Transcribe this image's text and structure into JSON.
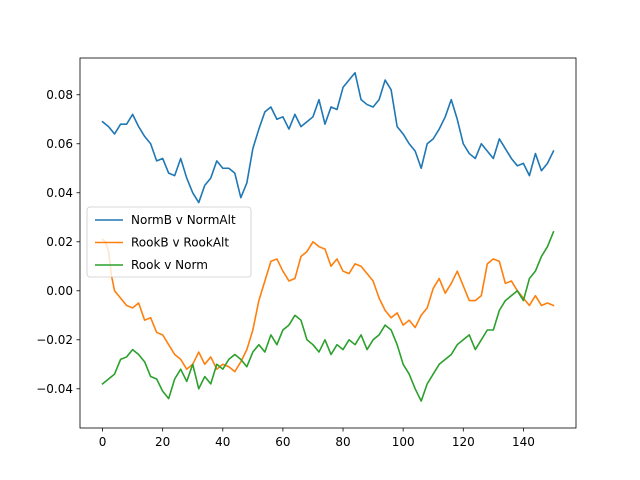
{
  "chart_data": {
    "type": "line",
    "title": "",
    "xlabel": "",
    "ylabel": "",
    "xlim": [
      -7.5,
      157.5
    ],
    "ylim": [
      -0.056,
      0.095
    ],
    "xticks": [
      0,
      20,
      40,
      60,
      80,
      100,
      120,
      140
    ],
    "yticks": [
      -0.04,
      -0.02,
      0.0,
      0.02,
      0.04,
      0.06,
      0.08
    ],
    "xtick_labels": [
      "0",
      "20",
      "40",
      "60",
      "80",
      "100",
      "120",
      "140"
    ],
    "ytick_labels": [
      "−0.04",
      "−0.02",
      "0.00",
      "0.02",
      "0.04",
      "0.06",
      "0.08"
    ],
    "grid": false,
    "legend_position": "center-left",
    "series": [
      {
        "name": "NormB v NormAlt",
        "color": "#1f77b4",
        "points": [
          [
            0,
            0.069
          ],
          [
            2,
            0.067
          ],
          [
            4,
            0.064
          ],
          [
            6,
            0.068
          ],
          [
            8,
            0.068
          ],
          [
            10,
            0.072
          ],
          [
            12,
            0.067
          ],
          [
            14,
            0.063
          ],
          [
            16,
            0.06
          ],
          [
            18,
            0.053
          ],
          [
            20,
            0.054
          ],
          [
            22,
            0.048
          ],
          [
            24,
            0.047
          ],
          [
            26,
            0.054
          ],
          [
            28,
            0.046
          ],
          [
            30,
            0.04
          ],
          [
            32,
            0.036
          ],
          [
            34,
            0.043
          ],
          [
            36,
            0.046
          ],
          [
            38,
            0.053
          ],
          [
            40,
            0.05
          ],
          [
            42,
            0.05
          ],
          [
            44,
            0.048
          ],
          [
            46,
            0.038
          ],
          [
            48,
            0.044
          ],
          [
            50,
            0.058
          ],
          [
            52,
            0.066
          ],
          [
            54,
            0.073
          ],
          [
            56,
            0.075
          ],
          [
            58,
            0.07
          ],
          [
            60,
            0.071
          ],
          [
            62,
            0.066
          ],
          [
            64,
            0.072
          ],
          [
            66,
            0.067
          ],
          [
            68,
            0.069
          ],
          [
            70,
            0.071
          ],
          [
            72,
            0.078
          ],
          [
            74,
            0.068
          ],
          [
            76,
            0.075
          ],
          [
            78,
            0.074
          ],
          [
            80,
            0.083
          ],
          [
            82,
            0.086
          ],
          [
            84,
            0.089
          ],
          [
            86,
            0.078
          ],
          [
            88,
            0.076
          ],
          [
            90,
            0.075
          ],
          [
            92,
            0.078
          ],
          [
            94,
            0.086
          ],
          [
            96,
            0.082
          ],
          [
            98,
            0.067
          ],
          [
            100,
            0.064
          ],
          [
            102,
            0.06
          ],
          [
            104,
            0.057
          ],
          [
            106,
            0.05
          ],
          [
            108,
            0.06
          ],
          [
            110,
            0.062
          ],
          [
            112,
            0.066
          ],
          [
            114,
            0.071
          ],
          [
            116,
            0.078
          ],
          [
            118,
            0.07
          ],
          [
            120,
            0.06
          ],
          [
            122,
            0.056
          ],
          [
            124,
            0.054
          ],
          [
            126,
            0.06
          ],
          [
            128,
            0.057
          ],
          [
            130,
            0.054
          ],
          [
            132,
            0.062
          ],
          [
            134,
            0.058
          ],
          [
            136,
            0.054
          ],
          [
            138,
            0.051
          ],
          [
            140,
            0.052
          ],
          [
            142,
            0.047
          ],
          [
            144,
            0.056
          ],
          [
            146,
            0.049
          ],
          [
            148,
            0.052
          ],
          [
            150,
            0.057
          ]
        ]
      },
      {
        "name": "RookB v RookAlt",
        "color": "#ff7f0e",
        "points": [
          [
            0,
            0.021
          ],
          [
            1,
            0.02
          ],
          [
            2,
            0.016
          ],
          [
            3,
            0.006
          ],
          [
            4,
            0.0
          ],
          [
            6,
            -0.003
          ],
          [
            8,
            -0.006
          ],
          [
            10,
            -0.007
          ],
          [
            12,
            -0.005
          ],
          [
            14,
            -0.012
          ],
          [
            16,
            -0.011
          ],
          [
            18,
            -0.017
          ],
          [
            20,
            -0.018
          ],
          [
            22,
            -0.022
          ],
          [
            24,
            -0.026
          ],
          [
            26,
            -0.028
          ],
          [
            28,
            -0.032
          ],
          [
            30,
            -0.03
          ],
          [
            32,
            -0.025
          ],
          [
            34,
            -0.03
          ],
          [
            36,
            -0.027
          ],
          [
            38,
            -0.032
          ],
          [
            40,
            -0.03
          ],
          [
            42,
            -0.031
          ],
          [
            44,
            -0.033
          ],
          [
            46,
            -0.029
          ],
          [
            48,
            -0.024
          ],
          [
            50,
            -0.016
          ],
          [
            52,
            -0.004
          ],
          [
            54,
            0.004
          ],
          [
            56,
            0.012
          ],
          [
            58,
            0.013
          ],
          [
            60,
            0.008
          ],
          [
            62,
            0.004
          ],
          [
            64,
            0.005
          ],
          [
            66,
            0.014
          ],
          [
            68,
            0.016
          ],
          [
            70,
            0.02
          ],
          [
            72,
            0.018
          ],
          [
            74,
            0.017
          ],
          [
            76,
            0.01
          ],
          [
            78,
            0.013
          ],
          [
            80,
            0.008
          ],
          [
            82,
            0.007
          ],
          [
            84,
            0.011
          ],
          [
            86,
            0.01
          ],
          [
            88,
            0.007
          ],
          [
            90,
            0.004
          ],
          [
            92,
            -0.003
          ],
          [
            94,
            -0.008
          ],
          [
            96,
            -0.011
          ],
          [
            98,
            -0.009
          ],
          [
            100,
            -0.014
          ],
          [
            102,
            -0.012
          ],
          [
            104,
            -0.015
          ],
          [
            106,
            -0.01
          ],
          [
            108,
            -0.007
          ],
          [
            110,
            0.001
          ],
          [
            112,
            0.005
          ],
          [
            114,
            -0.001
          ],
          [
            116,
            0.003
          ],
          [
            118,
            0.008
          ],
          [
            120,
            0.002
          ],
          [
            122,
            -0.004
          ],
          [
            124,
            -0.004
          ],
          [
            126,
            -0.002
          ],
          [
            128,
            0.011
          ],
          [
            130,
            0.013
          ],
          [
            132,
            0.012
          ],
          [
            134,
            0.003
          ],
          [
            136,
            0.004
          ],
          [
            138,
            0.0
          ],
          [
            140,
            -0.003
          ],
          [
            142,
            -0.006
          ],
          [
            144,
            -0.002
          ],
          [
            146,
            -0.006
          ],
          [
            148,
            -0.005
          ],
          [
            150,
            -0.006
          ]
        ]
      },
      {
        "name": "Rook v Norm",
        "color": "#2ca02c",
        "points": [
          [
            0,
            -0.038
          ],
          [
            2,
            -0.036
          ],
          [
            4,
            -0.034
          ],
          [
            6,
            -0.028
          ],
          [
            8,
            -0.027
          ],
          [
            10,
            -0.024
          ],
          [
            12,
            -0.026
          ],
          [
            14,
            -0.029
          ],
          [
            16,
            -0.035
          ],
          [
            18,
            -0.036
          ],
          [
            20,
            -0.041
          ],
          [
            22,
            -0.044
          ],
          [
            24,
            -0.036
          ],
          [
            26,
            -0.032
          ],
          [
            28,
            -0.037
          ],
          [
            30,
            -0.03
          ],
          [
            32,
            -0.04
          ],
          [
            34,
            -0.035
          ],
          [
            36,
            -0.038
          ],
          [
            38,
            -0.03
          ],
          [
            40,
            -0.032
          ],
          [
            42,
            -0.028
          ],
          [
            44,
            -0.026
          ],
          [
            46,
            -0.028
          ],
          [
            48,
            -0.031
          ],
          [
            50,
            -0.025
          ],
          [
            52,
            -0.022
          ],
          [
            54,
            -0.025
          ],
          [
            56,
            -0.018
          ],
          [
            58,
            -0.022
          ],
          [
            60,
            -0.016
          ],
          [
            62,
            -0.014
          ],
          [
            64,
            -0.01
          ],
          [
            66,
            -0.012
          ],
          [
            68,
            -0.02
          ],
          [
            70,
            -0.022
          ],
          [
            72,
            -0.025
          ],
          [
            74,
            -0.02
          ],
          [
            76,
            -0.026
          ],
          [
            78,
            -0.022
          ],
          [
            80,
            -0.024
          ],
          [
            82,
            -0.02
          ],
          [
            84,
            -0.022
          ],
          [
            86,
            -0.018
          ],
          [
            88,
            -0.024
          ],
          [
            90,
            -0.02
          ],
          [
            92,
            -0.018
          ],
          [
            94,
            -0.014
          ],
          [
            96,
            -0.016
          ],
          [
            98,
            -0.022
          ],
          [
            100,
            -0.03
          ],
          [
            102,
            -0.034
          ],
          [
            104,
            -0.04
          ],
          [
            106,
            -0.045
          ],
          [
            108,
            -0.038
          ],
          [
            110,
            -0.034
          ],
          [
            112,
            -0.03
          ],
          [
            114,
            -0.028
          ],
          [
            116,
            -0.026
          ],
          [
            118,
            -0.022
          ],
          [
            120,
            -0.02
          ],
          [
            122,
            -0.018
          ],
          [
            124,
            -0.024
          ],
          [
            126,
            -0.02
          ],
          [
            128,
            -0.016
          ],
          [
            130,
            -0.016
          ],
          [
            132,
            -0.008
          ],
          [
            134,
            -0.004
          ],
          [
            136,
            -0.002
          ],
          [
            138,
            0.0
          ],
          [
            140,
            -0.004
          ],
          [
            142,
            0.005
          ],
          [
            144,
            0.008
          ],
          [
            146,
            0.014
          ],
          [
            148,
            0.018
          ],
          [
            150,
            0.024
          ]
        ]
      }
    ]
  }
}
